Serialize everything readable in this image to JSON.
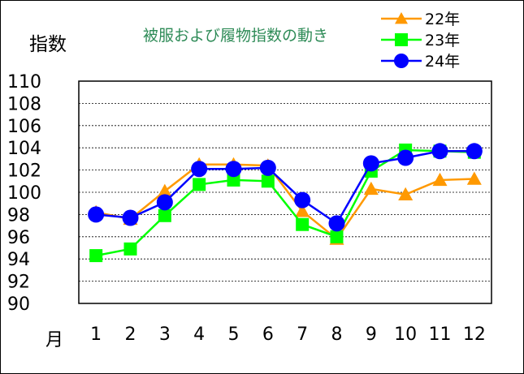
{
  "chart_data": {
    "type": "line",
    "title": "被服および履物指数の動き",
    "ylabel": "指数",
    "xlabel": "月",
    "categories": [
      "1",
      "2",
      "3",
      "4",
      "5",
      "6",
      "7",
      "8",
      "9",
      "10",
      "11",
      "12"
    ],
    "ylim": [
      90,
      110
    ],
    "yticks": [
      "90",
      "92",
      "94",
      "96",
      "98",
      "100",
      "102",
      "104",
      "106",
      "108",
      "110"
    ],
    "grid": true,
    "legend_position": "top-right",
    "series": [
      {
        "name": "22年",
        "color": "#ff9900",
        "marker": "triangle",
        "values": [
          98.2,
          97.6,
          100.1,
          102.5,
          102.5,
          102.4,
          98.3,
          95.8,
          100.3,
          99.8,
          101.1,
          101.2
        ]
      },
      {
        "name": "23年",
        "color": "#00ff00",
        "marker": "square",
        "values": [
          94.3,
          94.9,
          97.9,
          100.7,
          101.1,
          101.0,
          97.1,
          96.0,
          101.9,
          103.8,
          103.7,
          103.6
        ]
      },
      {
        "name": "24年",
        "color": "#0000ff",
        "marker": "circle",
        "values": [
          98.0,
          97.7,
          99.1,
          102.1,
          102.1,
          102.2,
          99.3,
          97.2,
          102.6,
          103.1,
          103.7,
          103.7
        ]
      }
    ]
  }
}
